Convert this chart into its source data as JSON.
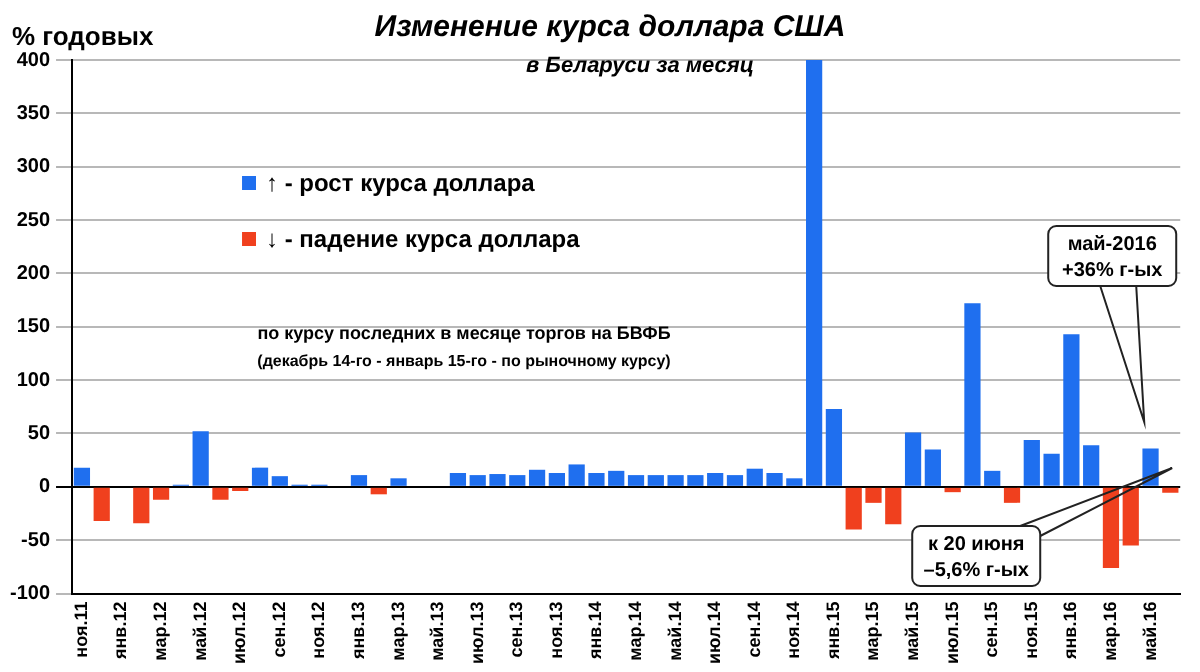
{
  "chart_data": {
    "type": "bar",
    "title": "Изменение курса доллара США",
    "subtitle": "в Беларуси за месяц",
    "ylabel": "% годовых",
    "categories": [
      "ноя.11",
      null,
      "янв.12",
      null,
      "мар.12",
      null,
      "май.12",
      null,
      "июл.12",
      null,
      "сен.12",
      null,
      "ноя.12",
      null,
      "янв.13",
      null,
      "мар.13",
      null,
      "май.13",
      null,
      "июл.13",
      null,
      "сен.13",
      null,
      "ноя.13",
      null,
      "янв.14",
      null,
      "мар.14",
      null,
      "май.14",
      null,
      "июл.14",
      null,
      "сен.14",
      null,
      "ноя.14",
      null,
      "янв.15",
      null,
      "мар.15",
      null,
      "май.15",
      null,
      "июл.15",
      null,
      "сен.15",
      null,
      "ноя.15",
      null,
      "янв.16",
      null,
      "мар.16",
      null,
      "май.16",
      null
    ],
    "series": [
      {
        "name": "↑ - рост курса доллара",
        "color": "#1f6fef",
        "values": [
          18,
          null,
          0,
          null,
          null,
          2,
          52,
          null,
          null,
          18,
          10,
          2,
          2,
          0,
          11,
          null,
          8,
          0,
          0,
          13,
          11,
          12,
          11,
          16,
          13,
          21,
          13,
          15,
          11,
          11,
          11,
          11,
          13,
          11,
          17,
          13,
          8,
          400,
          73,
          null,
          null,
          null,
          51,
          35,
          null,
          172,
          15,
          null,
          44,
          31,
          143,
          39,
          null,
          null,
          36,
          null
        ]
      },
      {
        "name": "↓ - падение курса доллара",
        "color": "#f0401e",
        "values": [
          null,
          -32,
          null,
          -34,
          -12,
          null,
          null,
          -12,
          -4,
          null,
          null,
          null,
          null,
          null,
          null,
          -7,
          null,
          null,
          null,
          null,
          null,
          null,
          null,
          null,
          null,
          null,
          null,
          null,
          null,
          null,
          null,
          null,
          null,
          null,
          null,
          null,
          null,
          null,
          null,
          -40,
          -15,
          -35,
          null,
          null,
          -5,
          null,
          null,
          -15,
          null,
          null,
          null,
          null,
          -76,
          -55,
          null,
          -5.6
        ]
      }
    ],
    "stacked": true,
    "ylim": [
      -100,
      400
    ],
    "yticks": [
      -100,
      -50,
      0,
      50,
      100,
      150,
      200,
      250,
      300,
      350,
      400
    ],
    "grid": "y",
    "legend": "top left",
    "annotations": [
      "по курсу последних в месяце торгов на БВФБ",
      "(декабрь 14-го - январь 15-го - по рыночному курсу)",
      "май-2016\n+36% г-ых",
      "к 20 июня\n–5,6% г-ых"
    ]
  }
}
